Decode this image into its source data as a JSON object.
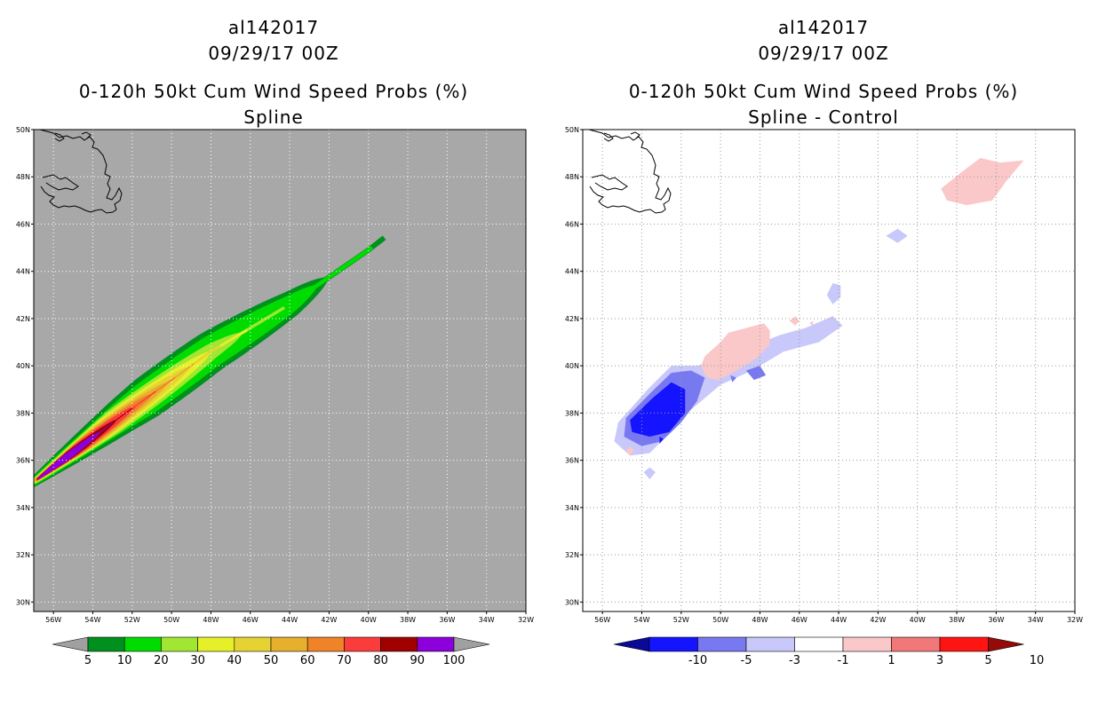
{
  "chart_data": [
    {
      "type": "heatmap",
      "storm_id": "al142017",
      "datetime": "09/29/17 00Z",
      "title": "0-120h 50kt Cum Wind Speed Probs (%)",
      "subtitle": "Spline",
      "x_ticks": [
        "56W",
        "54W",
        "52W",
        "50W",
        "48W",
        "46W",
        "44W",
        "42W",
        "40W",
        "38W",
        "36W",
        "34W",
        "32W"
      ],
      "y_ticks": [
        "50N",
        "48N",
        "46N",
        "44N",
        "42N",
        "40N",
        "38N",
        "36N",
        "34N",
        "32N",
        "30N"
      ],
      "xlim": [
        -57,
        -32
      ],
      "ylim": [
        29.6,
        50
      ],
      "grid": true,
      "colorbar": {
        "labels": [
          "5",
          "10",
          "20",
          "30",
          "40",
          "50",
          "60",
          "70",
          "80",
          "90",
          "100"
        ],
        "colors": [
          "#00901e",
          "#00dc00",
          "#a0e632",
          "#e6f028",
          "#e6d232",
          "#e6af2d",
          "#f08228",
          "#fa3c3c",
          "#a00000",
          "#8c00dc"
        ],
        "under_color": "#a0a0a0",
        "over_color": "#a0a0a0"
      },
      "plume": {
        "levels": [
          5,
          10,
          20,
          30,
          40,
          50,
          60,
          70,
          80,
          90
        ],
        "background_color": "#a8a8a8",
        "track": [
          [
            -56.5,
            35.4
          ],
          [
            -52.5,
            37.9
          ],
          [
            -48,
            40.6
          ],
          [
            -44,
            42.6
          ],
          [
            -40,
            44.9
          ],
          [
            -36,
            47.5
          ]
        ],
        "start_extent": [
          1.8,
          1.6,
          1.4,
          1.3,
          1.25,
          1.2,
          1.1,
          1.0,
          0.9,
          0.8
        ],
        "tip_distance": [
          21.1,
          20.3,
          14.9,
          12.7,
          11.1,
          9.5,
          8.3,
          7.1,
          5.6,
          4.4
        ],
        "lateral_halfwidth": [
          1.1,
          0.85,
          0.63,
          0.52,
          0.44,
          0.38,
          0.32,
          0.27,
          0.22,
          0.17
        ]
      }
    },
    {
      "type": "heatmap",
      "storm_id": "al142017",
      "datetime": "09/29/17 00Z",
      "title": "0-120h 50kt Cum Wind Speed Probs (%)",
      "subtitle": "Spline - Control",
      "x_ticks": [
        "56W",
        "54W",
        "52W",
        "50W",
        "48W",
        "46W",
        "44W",
        "42W",
        "40W",
        "38W",
        "36W",
        "34W",
        "32W"
      ],
      "y_ticks": [
        "50N",
        "48N",
        "46N",
        "44N",
        "42N",
        "40N",
        "38N",
        "36N",
        "34N",
        "32N",
        "30N"
      ],
      "xlim": [
        -57,
        -32
      ],
      "ylim": [
        29.6,
        50
      ],
      "grid": true,
      "colorbar": {
        "labels": [
          "-10",
          "-5",
          "-3",
          "-1",
          "1",
          "3",
          "5",
          "10"
        ],
        "colors": [
          "#0a0a96",
          "#1414ff",
          "#7878f0",
          "#c8c8fa",
          "#ffffff",
          "#fac8c8",
          "#f07878",
          "#ff1414",
          "#960a0a"
        ]
      },
      "diff_areas": [
        {
          "level": "-3 to -1",
          "color": "#c8c8fa",
          "poly": [
            [
              -55.2,
              37.6
            ],
            [
              -53.7,
              39.0
            ],
            [
              -52.5,
              40.0
            ],
            [
              -51.2,
              40.0
            ],
            [
              -49.5,
              40.4
            ],
            [
              -48.5,
              40.8
            ],
            [
              -47.0,
              41.3
            ],
            [
              -45.7,
              41.6
            ],
            [
              -44.3,
              42.1
            ],
            [
              -43.8,
              41.7
            ],
            [
              -45.0,
              41.0
            ],
            [
              -46.8,
              40.6
            ],
            [
              -48.4,
              39.8
            ],
            [
              -50.0,
              39.2
            ],
            [
              -51.7,
              38.0
            ],
            [
              -52.9,
              36.9
            ],
            [
              -53.6,
              36.3
            ],
            [
              -54.6,
              36.2
            ],
            [
              -55.4,
              36.8
            ]
          ]
        },
        {
          "level": "-3 to -1",
          "color": "#c8c8fa",
          "poly": [
            [
              -44.3,
              43.5
            ],
            [
              -43.9,
              43.4
            ],
            [
              -43.9,
              42.9
            ],
            [
              -44.3,
              42.6
            ],
            [
              -44.6,
              43.0
            ]
          ]
        },
        {
          "level": "-3 to -1",
          "color": "#c8c8fa",
          "poly": [
            [
              -41.6,
              45.5
            ],
            [
              -41.0,
              45.8
            ],
            [
              -40.5,
              45.5
            ],
            [
              -41.0,
              45.2
            ]
          ]
        },
        {
          "level": "-3 to -1",
          "color": "#c8c8fa",
          "poly": [
            [
              -53.9,
              35.5
            ],
            [
              -53.6,
              35.7
            ],
            [
              -53.3,
              35.5
            ],
            [
              -53.6,
              35.2
            ]
          ]
        },
        {
          "level": "-5 to -3",
          "color": "#7878f0",
          "poly": [
            [
              -54.8,
              37.8
            ],
            [
              -53.5,
              38.9
            ],
            [
              -52.5,
              39.7
            ],
            [
              -51.5,
              39.8
            ],
            [
              -50.8,
              39.5
            ],
            [
              -51.2,
              38.5
            ],
            [
              -52.0,
              37.6
            ],
            [
              -53.0,
              36.8
            ],
            [
              -54.0,
              36.6
            ],
            [
              -54.9,
              37.0
            ]
          ]
        },
        {
          "level": "-5 to -3",
          "color": "#7878f0",
          "poly": [
            [
              -48.7,
              39.8
            ],
            [
              -48.0,
              40.0
            ],
            [
              -47.7,
              39.6
            ],
            [
              -48.3,
              39.4
            ]
          ]
        },
        {
          "level": "-5 to -3",
          "color": "#7878f0",
          "poly": [
            [
              -49.5,
              39.6
            ],
            [
              -49.2,
              39.5
            ],
            [
              -49.4,
              39.3
            ]
          ]
        },
        {
          "level": "-10 to -5",
          "color": "#1414ff",
          "poly": [
            [
              -54.6,
              37.7
            ],
            [
              -53.5,
              38.6
            ],
            [
              -52.5,
              39.3
            ],
            [
              -51.8,
              39.0
            ],
            [
              -51.8,
              38.0
            ],
            [
              -52.6,
              37.2
            ],
            [
              -53.6,
              37.0
            ],
            [
              -54.5,
              37.2
            ]
          ]
        },
        {
          "level": "-10 to -5",
          "color": "#1414ff",
          "poly": [
            [
              -53.1,
              37.0
            ],
            [
              -52.9,
              36.9
            ],
            [
              -53.1,
              36.7
            ]
          ]
        },
        {
          "level": "1 to 3",
          "color": "#fac8c8",
          "poly": [
            [
              -50.8,
              40.4
            ],
            [
              -50.0,
              41.0
            ],
            [
              -49.6,
              41.4
            ],
            [
              -48.7,
              41.6
            ],
            [
              -47.8,
              41.8
            ],
            [
              -47.5,
              41.5
            ],
            [
              -47.5,
              40.9
            ],
            [
              -48.2,
              40.3
            ],
            [
              -49.2,
              39.8
            ],
            [
              -50.1,
              39.4
            ],
            [
              -50.7,
              39.5
            ],
            [
              -51.0,
              40.0
            ]
          ]
        },
        {
          "level": "1 to 3",
          "color": "#fac8c8",
          "poly": [
            [
              -38.5,
              47.0
            ],
            [
              -38.8,
              47.5
            ],
            [
              -37.6,
              48.3
            ],
            [
              -36.8,
              48.8
            ],
            [
              -35.8,
              48.6
            ],
            [
              -34.6,
              48.7
            ],
            [
              -35.5,
              47.8
            ],
            [
              -36.2,
              47.0
            ],
            [
              -37.5,
              46.8
            ]
          ]
        },
        {
          "level": "1 to 3",
          "color": "#fac8c8",
          "poly": [
            [
              -46.5,
              41.9
            ],
            [
              -46.2,
              42.1
            ],
            [
              -46.0,
              41.9
            ],
            [
              -46.2,
              41.7
            ]
          ]
        },
        {
          "level": "1 to 3",
          "color": "#fac8c8",
          "poly": [
            [
              -45.5,
              41.8
            ],
            [
              -45.3,
              41.9
            ],
            [
              -45.3,
              41.7
            ]
          ]
        },
        {
          "level": "1 to 3",
          "color": "#fac8c8",
          "poly": [
            [
              -54.8,
              36.4
            ],
            [
              -54.6,
              36.6
            ],
            [
              -54.4,
              36.4
            ],
            [
              -54.6,
              36.2
            ]
          ]
        }
      ]
    }
  ]
}
